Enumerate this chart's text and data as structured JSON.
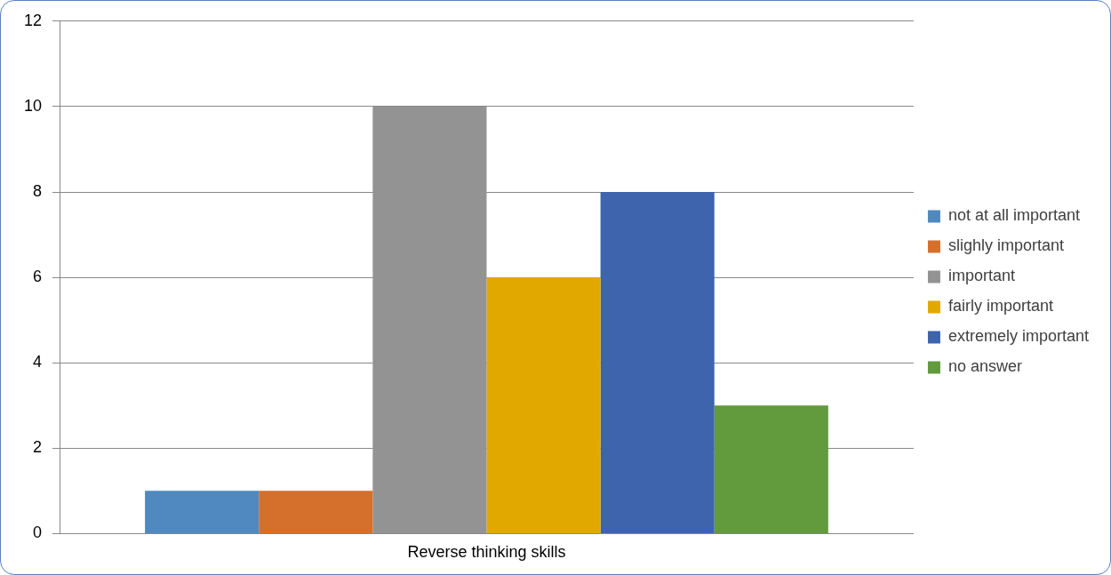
{
  "chart_data": {
    "type": "bar",
    "categories": [
      "Reverse thinking skills"
    ],
    "series": [
      {
        "name": "not at all important",
        "color": "#4f89bf",
        "values": [
          1
        ]
      },
      {
        "name": "slighly important",
        "color": "#d4702c",
        "values": [
          1
        ]
      },
      {
        "name": "important",
        "color": "#939393",
        "values": [
          10
        ]
      },
      {
        "name": "fairly important",
        "color": "#e1a900",
        "values": [
          6
        ]
      },
      {
        "name": "extremely important",
        "color": "#3d64ad",
        "values": [
          8
        ]
      },
      {
        "name": "no answer",
        "color": "#629a3e",
        "values": [
          3
        ]
      }
    ],
    "ylim": [
      0,
      12
    ],
    "yticks": [
      0,
      2,
      4,
      6,
      8,
      10,
      12
    ],
    "grid": "y",
    "legend": "right"
  }
}
